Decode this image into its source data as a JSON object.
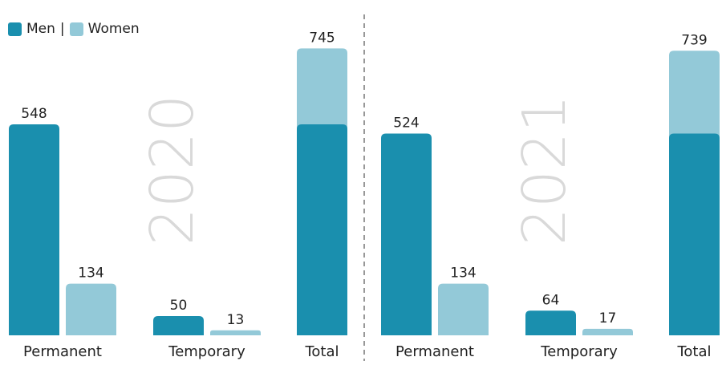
{
  "chart_data": {
    "type": "bar",
    "legend": {
      "men_label": "Men",
      "separator": "|",
      "women_label": "Women",
      "placement": "top-left"
    },
    "colors": {
      "men": "#1a8fae",
      "women": "#93c9d8",
      "year_text": "#d9d9d9",
      "divider": "#777777"
    },
    "grid": false,
    "panels": [
      {
        "year": "2020",
        "categories": [
          "Permanent",
          "Temporary",
          "Total"
        ],
        "series": [
          {
            "name": "Men",
            "values": [
              548,
              50,
              null
            ]
          },
          {
            "name": "Women",
            "values": [
              134,
              13,
              null
            ]
          }
        ],
        "total": {
          "men": 548,
          "women": 197,
          "label": "745"
        },
        "labels": {
          "permanent_men": "548",
          "permanent_women": "134",
          "temporary_men": "50",
          "temporary_women": "13"
        }
      },
      {
        "year": "2021",
        "categories": [
          "Permanent",
          "Temporary",
          "Total"
        ],
        "series": [
          {
            "name": "Men",
            "values": [
              524,
              64,
              null
            ]
          },
          {
            "name": "Women",
            "values": [
              134,
              17,
              null
            ]
          }
        ],
        "total": {
          "men": 524,
          "women": 215,
          "label": "739"
        },
        "labels": {
          "permanent_men": "524",
          "permanent_women": "134",
          "temporary_men": "64",
          "temporary_women": "17"
        }
      }
    ]
  }
}
